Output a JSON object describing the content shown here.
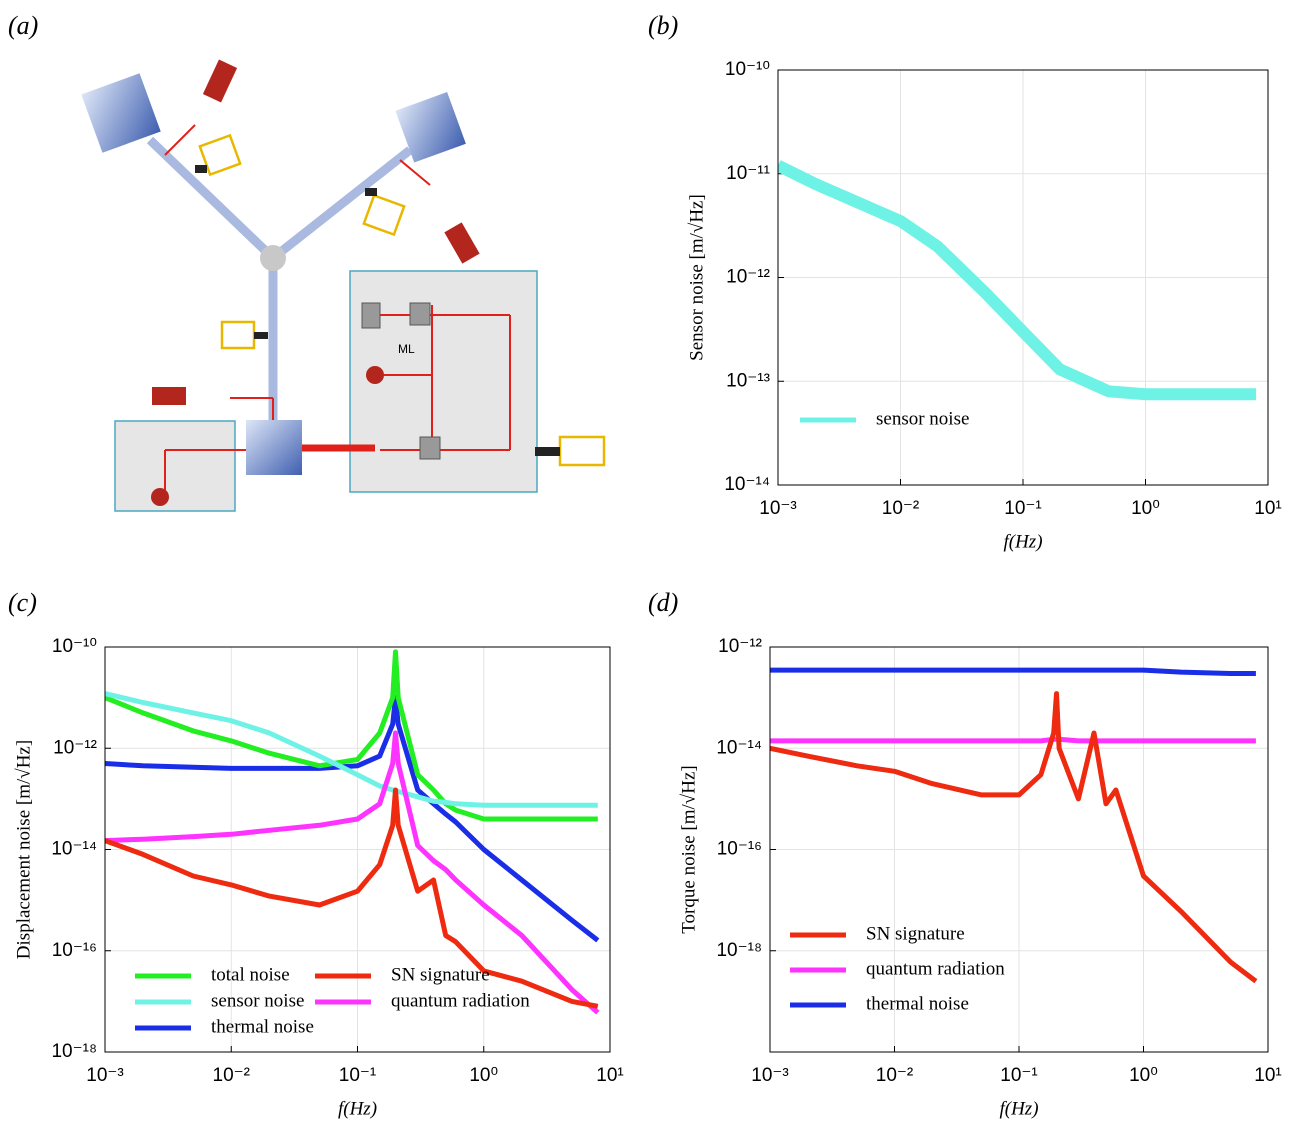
{
  "diagram": {
    "label": "(a)",
    "annotation": "ML"
  },
  "chart_data": [
    {
      "type": "line",
      "panel_label": "(b)",
      "xlabel": "f(Hz)",
      "ylabel": "Sensor noise  [m/√Hz]",
      "xscale": "log",
      "yscale": "log",
      "grid": true,
      "legend": "lower left",
      "xlim": [
        0.001,
        10
      ],
      "ylim": [
        1e-14,
        1e-10
      ],
      "xticks": [
        {
          "value": 0.001,
          "label": "10⁻³"
        },
        {
          "value": 0.01,
          "label": "10⁻²"
        },
        {
          "value": 0.1,
          "label": "10⁻¹"
        },
        {
          "value": 1,
          "label": "10⁰"
        },
        {
          "value": 10,
          "label": "10¹"
        }
      ],
      "yticks": [
        {
          "value": 1e-14,
          "label": "10⁻¹⁴"
        },
        {
          "value": 1e-13,
          "label": "10⁻¹³"
        },
        {
          "value": 1e-12,
          "label": "10⁻¹²"
        },
        {
          "value": 1e-11,
          "label": "10⁻¹¹"
        },
        {
          "value": 1e-10,
          "label": "10⁻¹⁰"
        }
      ],
      "x": [
        0.001,
        0.002,
        0.005,
        0.01,
        0.02,
        0.05,
        0.1,
        0.2,
        0.5,
        1,
        2,
        5,
        8
      ],
      "series": [
        {
          "name": "sensor noise",
          "color": "#6ff2e6",
          "values": [
            1.2e-11,
            8e-12,
            5e-12,
            3.5e-12,
            2e-12,
            7e-13,
            3e-13,
            1.3e-13,
            8e-14,
            7.5e-14,
            7.5e-14,
            7.5e-14,
            7.5e-14
          ]
        }
      ]
    },
    {
      "type": "line",
      "panel_label": "(c)",
      "xlabel": "f(Hz)",
      "ylabel": "Displacement noise [m/√Hz]",
      "xscale": "log",
      "yscale": "log",
      "grid": true,
      "legend": "lower left",
      "legend_columns": 2,
      "xlim": [
        0.001,
        10
      ],
      "ylim": [
        1e-18,
        1e-10
      ],
      "xticks": [
        {
          "value": 0.001,
          "label": "10⁻³"
        },
        {
          "value": 0.01,
          "label": "10⁻²"
        },
        {
          "value": 0.1,
          "label": "10⁻¹"
        },
        {
          "value": 1,
          "label": "10⁰"
        },
        {
          "value": 10,
          "label": "10¹"
        }
      ],
      "yticks": [
        {
          "value": 1e-18,
          "label": "10⁻¹⁸"
        },
        {
          "value": 1e-16,
          "label": "10⁻¹⁶"
        },
        {
          "value": 1e-14,
          "label": "10⁻¹⁴"
        },
        {
          "value": 1e-12,
          "label": "10⁻¹²"
        },
        {
          "value": 1e-10,
          "label": "10⁻¹⁰"
        }
      ],
      "x": [
        0.001,
        0.002,
        0.005,
        0.01,
        0.02,
        0.05,
        0.1,
        0.15,
        0.19,
        0.2,
        0.21,
        0.3,
        0.4,
        0.5,
        0.6,
        1,
        2,
        5,
        8
      ],
      "series": [
        {
          "name": "total noise",
          "color": "#22ee22",
          "values": [
            1e-11,
            5e-12,
            2.2e-12,
            1.4e-12,
            8e-13,
            4.5e-13,
            6e-13,
            2e-12,
            1e-11,
            8e-11,
            1e-11,
            3e-13,
            1.5e-13,
            8e-14,
            6e-14,
            4e-14,
            4e-14,
            4e-14,
            4e-14
          ]
        },
        {
          "name": "sensor noise",
          "color": "#6ff2e6",
          "values": [
            1.2e-11,
            8e-12,
            5e-12,
            3.5e-12,
            2e-12,
            7e-13,
            3e-13,
            1.8e-13,
            1.5e-13,
            1.4e-13,
            1.4e-13,
            1.1e-13,
            9e-14,
            8.5e-14,
            8e-14,
            7.5e-14,
            7.5e-14,
            7.5e-14,
            7.5e-14
          ]
        },
        {
          "name": "thermal noise",
          "color": "#1a2ee8",
          "values": [
            5e-13,
            4.5e-13,
            4.2e-13,
            4e-13,
            4e-13,
            4e-13,
            4.5e-13,
            7e-13,
            3e-12,
            1e-11,
            3e-12,
            1.5e-13,
            8e-14,
            5e-14,
            3.5e-14,
            1e-14,
            2.5e-15,
            4e-16,
            1.6e-16
          ]
        },
        {
          "name": "SN signature",
          "color": "#ee2a10",
          "values": [
            1.5e-14,
            8e-15,
            3e-15,
            2e-15,
            1.2e-15,
            8e-16,
            1.5e-15,
            5e-15,
            3e-14,
            1.5e-13,
            3e-14,
            1.5e-15,
            2.5e-15,
            2e-16,
            1.5e-16,
            4e-17,
            2.5e-17,
            1e-17,
            8e-18
          ]
        },
        {
          "name": "quantum radiation",
          "color": "#ff33ff",
          "values": [
            1.5e-14,
            1.6e-14,
            1.8e-14,
            2e-14,
            2.4e-14,
            3e-14,
            4e-14,
            8e-14,
            5e-13,
            2e-12,
            5e-13,
            1.2e-14,
            6e-15,
            4e-15,
            2.5e-15,
            8e-16,
            2e-16,
            1.7e-17,
            6e-18
          ]
        }
      ]
    },
    {
      "type": "line",
      "panel_label": "(d)",
      "xlabel": "f(Hz)",
      "ylabel": "Torque noise [m/√Hz]",
      "xscale": "log",
      "yscale": "log",
      "grid": true,
      "legend": "lower left",
      "xlim": [
        0.001,
        10
      ],
      "ylim": [
        1e-20,
        1e-12
      ],
      "xticks": [
        {
          "value": 0.001,
          "label": "10⁻³"
        },
        {
          "value": 0.01,
          "label": "10⁻²"
        },
        {
          "value": 0.1,
          "label": "10⁻¹"
        },
        {
          "value": 1,
          "label": "10⁰"
        },
        {
          "value": 10,
          "label": "10¹"
        }
      ],
      "yticks": [
        {
          "value": 1e-18,
          "label": "10⁻¹⁸"
        },
        {
          "value": 1e-16,
          "label": "10⁻¹⁶"
        },
        {
          "value": 1e-14,
          "label": "10⁻¹⁴"
        },
        {
          "value": 1e-12,
          "label": "10⁻¹²"
        }
      ],
      "x": [
        0.001,
        0.002,
        0.005,
        0.01,
        0.02,
        0.05,
        0.1,
        0.15,
        0.19,
        0.2,
        0.21,
        0.3,
        0.4,
        0.5,
        0.6,
        1,
        2,
        5,
        8
      ],
      "series": [
        {
          "name": "SN signature",
          "color": "#ee2a10",
          "values": [
            1e-14,
            7e-15,
            4.5e-15,
            3.5e-15,
            2e-15,
            1.2e-15,
            1.2e-15,
            3e-15,
            2e-14,
            1.2e-13,
            1e-14,
            1e-15,
            2e-14,
            8e-16,
            1.5e-15,
            3e-17,
            6e-18,
            6e-19,
            2.5e-19
          ]
        },
        {
          "name": "quantum radiation",
          "color": "#ff33ff",
          "values": [
            1.4e-14,
            1.4e-14,
            1.4e-14,
            1.4e-14,
            1.4e-14,
            1.4e-14,
            1.4e-14,
            1.4e-14,
            1.5e-14,
            1.5e-14,
            1.5e-14,
            1.4e-14,
            1.4e-14,
            1.4e-14,
            1.4e-14,
            1.4e-14,
            1.4e-14,
            1.4e-14,
            1.4e-14
          ]
        },
        {
          "name": "thermal noise",
          "color": "#1a2ee8",
          "values": [
            3.5e-13,
            3.5e-13,
            3.5e-13,
            3.5e-13,
            3.5e-13,
            3.5e-13,
            3.5e-13,
            3.5e-13,
            3.5e-13,
            3.5e-13,
            3.5e-13,
            3.5e-13,
            3.5e-13,
            3.5e-13,
            3.5e-13,
            3.5e-13,
            3.2e-13,
            3e-13,
            3e-13
          ]
        }
      ]
    }
  ]
}
